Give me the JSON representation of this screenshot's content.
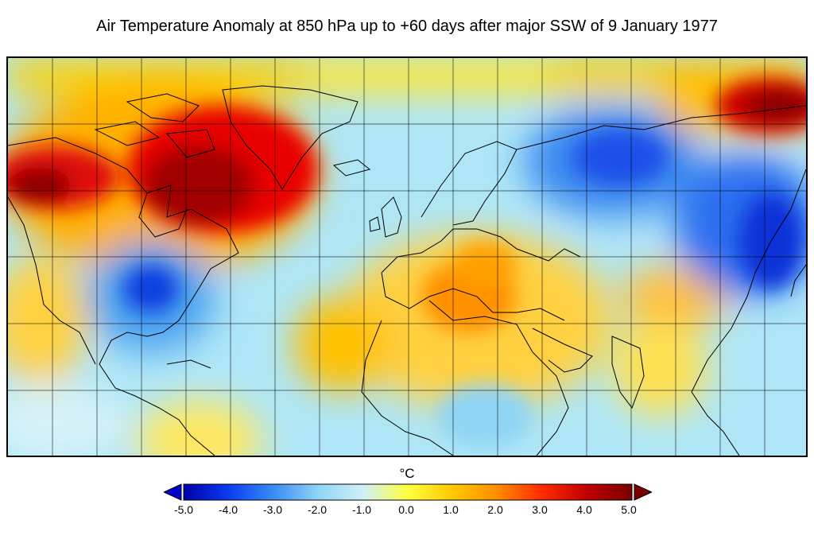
{
  "title": "Air Temperature Anomaly at 850 hPa up to +60 days after major SSW of 9 January 1977",
  "colorbar": {
    "unit": "°C",
    "ticks": [
      "-5.0",
      "-4.0",
      "-3.0",
      "-2.0",
      "-1.0",
      "0.0",
      "1.0",
      "2.0",
      "3.0",
      "4.0",
      "5.0"
    ],
    "range": [
      -5.0,
      5.0
    ],
    "colors": [
      "#0000a8",
      "#0a3cf0",
      "#3a8cf5",
      "#8fd4f5",
      "#cff0f8",
      "#ffff40",
      "#ffc800",
      "#ff8c00",
      "#ff2a00",
      "#c00000",
      "#780000"
    ],
    "extend": "both"
  },
  "map": {
    "projection": "equirectangular",
    "region": "North America, Atlantic, Europe, Africa, Asia",
    "grid": true
  }
}
